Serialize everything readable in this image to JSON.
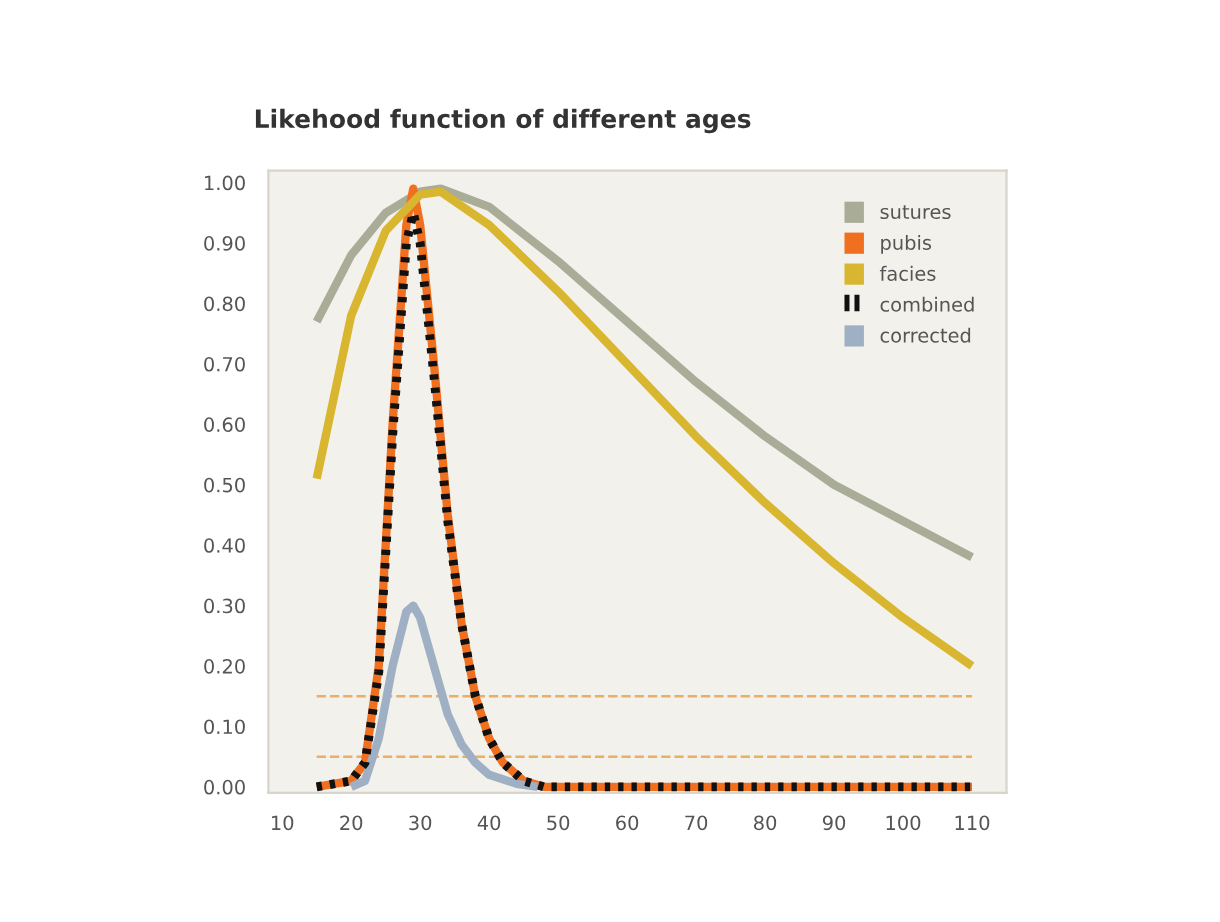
{
  "chart_data": {
    "type": "line",
    "title": "Likehood function of different ages",
    "xlim": [
      8,
      115
    ],
    "ylim": [
      -0.01,
      1.02
    ],
    "xticks": [
      10,
      20,
      30,
      40,
      50,
      60,
      70,
      80,
      90,
      100,
      110
    ],
    "yticks": [
      {
        "value": 0,
        "label": "0.00"
      },
      {
        "value": 0.1,
        "label": "0.10"
      },
      {
        "value": 0.2,
        "label": "0.20"
      },
      {
        "value": 0.3,
        "label": "0.30"
      },
      {
        "value": 0.4,
        "label": "0.40"
      },
      {
        "value": 0.5,
        "label": "0.50"
      },
      {
        "value": 0.6,
        "label": "0.60"
      },
      {
        "value": 0.7,
        "label": "0.70"
      },
      {
        "value": 0.8,
        "label": "0.80"
      },
      {
        "value": 0.9,
        "label": "0.90"
      },
      {
        "value": 1,
        "label": "1.00"
      }
    ],
    "grid": false,
    "legend": "top right",
    "marker": "none",
    "series": [
      {
        "name": "sutures",
        "color": "#a9ad98",
        "x": [
          15,
          20,
          25,
          30,
          33,
          40,
          50,
          60,
          70,
          80,
          90,
          100,
          110
        ],
        "values": [
          0.77,
          0.88,
          0.95,
          0.985,
          0.99,
          0.96,
          0.87,
          0.77,
          0.67,
          0.58,
          0.5,
          0.44,
          0.38
        ]
      },
      {
        "name": "pubis",
        "color": "#f07020",
        "x": [
          15,
          20,
          22,
          24,
          26,
          28,
          29,
          30,
          32,
          34,
          36,
          38,
          40,
          42,
          45,
          48,
          110
        ],
        "values": [
          0,
          0.01,
          0.04,
          0.2,
          0.6,
          0.93,
          0.99,
          0.93,
          0.7,
          0.45,
          0.27,
          0.15,
          0.08,
          0.04,
          0.01,
          0,
          0
        ]
      },
      {
        "name": "facies",
        "color": "#d9b630",
        "x": [
          15,
          20,
          25,
          30,
          33,
          40,
          50,
          60,
          70,
          80,
          90,
          100,
          110
        ],
        "values": [
          0.51,
          0.78,
          0.92,
          0.98,
          0.985,
          0.93,
          0.82,
          0.7,
          0.58,
          0.47,
          0.37,
          0.28,
          0.2
        ]
      },
      {
        "name": "combined",
        "color": "#111111",
        "line_style": "dotted",
        "x": [
          15,
          20,
          22,
          24,
          26,
          28,
          29,
          30,
          32,
          34,
          36,
          38,
          40,
          42,
          45,
          48,
          110
        ],
        "values": [
          0,
          0.01,
          0.04,
          0.19,
          0.58,
          0.9,
          0.95,
          0.9,
          0.68,
          0.44,
          0.27,
          0.15,
          0.08,
          0.04,
          0.01,
          0,
          0
        ]
      },
      {
        "name": "corrected",
        "color": "#9fb0c4",
        "x": [
          20,
          22,
          24,
          26,
          28,
          29,
          30,
          32,
          34,
          36,
          38,
          40,
          44,
          47
        ],
        "values": [
          0,
          0.01,
          0.08,
          0.2,
          0.29,
          0.3,
          0.28,
          0.2,
          0.12,
          0.07,
          0.04,
          0.02,
          0.005,
          0
        ]
      }
    ],
    "ref_lines": [
      {
        "axis": "y",
        "value": 0.15,
        "color": "#e8b060",
        "line_style": "dashed"
      },
      {
        "axis": "y",
        "value": 0.05,
        "color": "#e8b060",
        "line_style": "dashed"
      }
    ]
  }
}
